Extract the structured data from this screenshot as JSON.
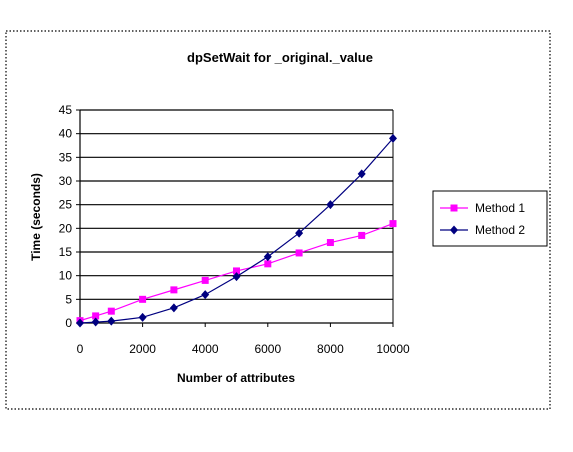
{
  "chart_data": {
    "type": "line",
    "title": "dpSetWait for _original._value",
    "xlabel": "Number of attributes",
    "ylabel": "Time (seconds)",
    "xlim": [
      0,
      10000
    ],
    "ylim": [
      0,
      45
    ],
    "x_ticks": [
      "0",
      "2000",
      "4000",
      "6000",
      "8000",
      "10000"
    ],
    "y_ticks": [
      "0",
      "5",
      "10",
      "15",
      "20",
      "25",
      "30",
      "35",
      "40",
      "45"
    ],
    "grid": true,
    "legend_position": "right",
    "series": [
      {
        "name": "Method 1",
        "color": "#ff00ff",
        "marker": "square",
        "x": [
          0,
          500,
          1000,
          2000,
          3000,
          4000,
          5000,
          6000,
          7000,
          8000,
          9000,
          10000
        ],
        "y": [
          0.5,
          1.5,
          2.5,
          5,
          7,
          9,
          11,
          12.5,
          14.8,
          17,
          18.5,
          21
        ]
      },
      {
        "name": "Method 2",
        "color": "#000080",
        "marker": "diamond",
        "x": [
          0,
          500,
          1000,
          2000,
          3000,
          4000,
          5000,
          6000,
          7000,
          8000,
          9000,
          10000
        ],
        "y": [
          0,
          0.2,
          0.4,
          1.2,
          3.2,
          6,
          9.8,
          14,
          19,
          25,
          31.5,
          39
        ]
      }
    ]
  }
}
